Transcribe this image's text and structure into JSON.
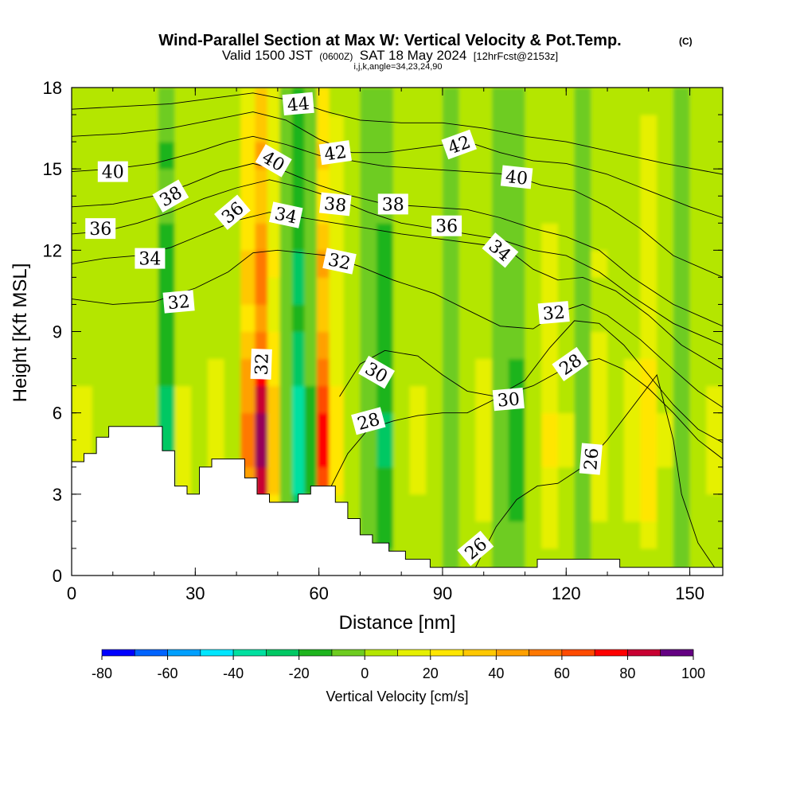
{
  "chart_data": {
    "type": "heatmap",
    "title": "Wind-Parallel Section at Max W: Vertical Velocity & Pot.Temp.",
    "title_mark": "(C)",
    "subtitle": {
      "valid_prefix": "Valid 1500 JST",
      "utc": "(0600Z)",
      "date": "SAT 18 May 2024",
      "forecast": "[12hrFcst@2153z]"
    },
    "indices": "i,j,k,angle=34,23,24,90",
    "xlabel": "Distance [nm]",
    "ylabel": "Height [Kft MSL]",
    "xlim": [
      0,
      158
    ],
    "ylim": [
      0,
      18
    ],
    "x_ticks": [
      0,
      30,
      60,
      90,
      120,
      150
    ],
    "y_ticks": [
      0,
      3,
      6,
      9,
      12,
      15,
      18
    ],
    "colorbar": {
      "label": "Vertical Velocity [cm/s]",
      "tick_values": [
        -80,
        -60,
        -40,
        -20,
        0,
        20,
        40,
        60,
        80,
        100
      ],
      "levels": [
        -80,
        -70,
        -60,
        -50,
        -40,
        -30,
        -20,
        -10,
        0,
        10,
        20,
        30,
        40,
        50,
        60,
        70,
        80,
        90,
        100
      ],
      "colors": [
        "#0000ff",
        "#0064ff",
        "#00a0ff",
        "#00e6ff",
        "#00e0a0",
        "#00c864",
        "#1eb41e",
        "#6ecc20",
        "#b4e600",
        "#e6f000",
        "#ffe600",
        "#ffc800",
        "#ffa000",
        "#ff7800",
        "#ff4b00",
        "#ff0000",
        "#c80032",
        "#96005a",
        "#640082"
      ]
    },
    "w_columns": [
      {
        "x": 3,
        "w": 12
      },
      {
        "x": 7,
        "w": 6
      },
      {
        "x": 11,
        "w": 9
      },
      {
        "x": 15,
        "w": 2
      },
      {
        "x": 19,
        "w": 8
      },
      {
        "x": 23,
        "w": -24
      },
      {
        "x": 27,
        "w": 12
      },
      {
        "x": 31,
        "w": 2
      },
      {
        "x": 35,
        "w": 16
      },
      {
        "x": 39,
        "w": 4
      },
      {
        "x": 43,
        "w": 55
      },
      {
        "x": 46,
        "w": 95
      },
      {
        "x": 49,
        "w": 35
      },
      {
        "x": 52,
        "w": -10
      },
      {
        "x": 55,
        "w": -38
      },
      {
        "x": 58,
        "w": -12
      },
      {
        "x": 61,
        "w": 72
      },
      {
        "x": 64,
        "w": 25
      },
      {
        "x": 68,
        "w": 4
      },
      {
        "x": 72,
        "w": -8
      },
      {
        "x": 76,
        "w": -22
      },
      {
        "x": 80,
        "w": 3
      },
      {
        "x": 84,
        "w": 12
      },
      {
        "x": 88,
        "w": 4
      },
      {
        "x": 92,
        "w": -6
      },
      {
        "x": 96,
        "w": 8
      },
      {
        "x": 100,
        "w": 14
      },
      {
        "x": 104,
        "w": -4
      },
      {
        "x": 108,
        "w": -14
      },
      {
        "x": 112,
        "w": 6
      },
      {
        "x": 116,
        "w": 22
      },
      {
        "x": 120,
        "w": 10
      },
      {
        "x": 124,
        "w": -2
      },
      {
        "x": 128,
        "w": 18
      },
      {
        "x": 132,
        "w": 4
      },
      {
        "x": 136,
        "w": 14
      },
      {
        "x": 140,
        "w": 28
      },
      {
        "x": 144,
        "w": 10
      },
      {
        "x": 148,
        "w": -10
      },
      {
        "x": 152,
        "w": 2
      },
      {
        "x": 156,
        "w": 12
      }
    ],
    "terrain": [
      [
        0,
        4.2
      ],
      [
        3,
        4.2
      ],
      [
        3,
        4.5
      ],
      [
        6,
        4.5
      ],
      [
        6,
        5.1
      ],
      [
        9,
        5.1
      ],
      [
        9,
        5.5
      ],
      [
        22,
        5.5
      ],
      [
        22,
        4.6
      ],
      [
        25,
        4.6
      ],
      [
        25,
        3.3
      ],
      [
        28,
        3.3
      ],
      [
        28,
        3.0
      ],
      [
        31,
        3.0
      ],
      [
        31,
        4.0
      ],
      [
        34,
        4.0
      ],
      [
        34,
        4.3
      ],
      [
        42,
        4.3
      ],
      [
        42,
        3.6
      ],
      [
        45,
        3.6
      ],
      [
        45,
        3.0
      ],
      [
        48,
        3.0
      ],
      [
        48,
        2.7
      ],
      [
        55,
        2.7
      ],
      [
        55,
        3.0
      ],
      [
        58,
        3.0
      ],
      [
        58,
        3.3
      ],
      [
        64,
        3.3
      ],
      [
        64,
        2.7
      ],
      [
        67,
        2.7
      ],
      [
        67,
        2.1
      ],
      [
        70,
        2.1
      ],
      [
        70,
        1.5
      ],
      [
        73,
        1.5
      ],
      [
        73,
        1.2
      ],
      [
        77,
        1.2
      ],
      [
        77,
        0.9
      ],
      [
        81,
        0.9
      ],
      [
        81,
        0.6
      ],
      [
        87,
        0.6
      ],
      [
        87,
        0.3
      ],
      [
        113,
        0.3
      ],
      [
        113,
        0.6
      ],
      [
        133,
        0.6
      ],
      [
        133,
        0.3
      ],
      [
        158,
        0.3
      ]
    ],
    "theta_contours": [
      {
        "value": 26,
        "points": [
          [
            98,
            0.3
          ],
          [
            103,
            1.8
          ],
          [
            108,
            2.8
          ],
          [
            113,
            3.3
          ],
          [
            118,
            3.4
          ],
          [
            124,
            4.0
          ],
          [
            130,
            5.0
          ],
          [
            136,
            6.2
          ],
          [
            142,
            7.4
          ],
          [
            146,
            5.0
          ],
          [
            148,
            3.0
          ],
          [
            152,
            1.2
          ],
          [
            156,
            0.3
          ]
        ]
      },
      {
        "value": 28,
        "points": [
          [
            63,
            3.3
          ],
          [
            67,
            4.5
          ],
          [
            72,
            5.4
          ],
          [
            78,
            5.7
          ],
          [
            84,
            5.9
          ],
          [
            90,
            6.0
          ],
          [
            96,
            6.0
          ],
          [
            104,
            6.6
          ],
          [
            112,
            7.0
          ],
          [
            118,
            7.5
          ],
          [
            122,
            7.8
          ],
          [
            128,
            8.0
          ],
          [
            134,
            7.6
          ],
          [
            140,
            6.9
          ],
          [
            146,
            6.0
          ],
          [
            152,
            5.0
          ],
          [
            158,
            4.3
          ]
        ]
      },
      {
        "value": 30,
        "points": [
          [
            65,
            6.6
          ],
          [
            70,
            7.8
          ],
          [
            76,
            8.3
          ],
          [
            84,
            8.1
          ],
          [
            90,
            7.4
          ],
          [
            96,
            6.8
          ],
          [
            103,
            6.6
          ],
          [
            110,
            7.2
          ],
          [
            116,
            8.4
          ],
          [
            122,
            9.4
          ],
          [
            128,
            9.3
          ],
          [
            134,
            8.5
          ],
          [
            140,
            7.4
          ],
          [
            146,
            6.3
          ],
          [
            152,
            5.4
          ],
          [
            158,
            4.9
          ]
        ]
      },
      {
        "value": 32,
        "points": [
          [
            0,
            10.2
          ],
          [
            10,
            10.0
          ],
          [
            20,
            10.1
          ],
          [
            30,
            10.6
          ],
          [
            38,
            11.2
          ],
          [
            44,
            11.9
          ],
          [
            50,
            12.0
          ],
          [
            56,
            11.9
          ],
          [
            62,
            11.8
          ],
          [
            70,
            11.4
          ],
          [
            78,
            10.9
          ],
          [
            88,
            10.4
          ],
          [
            96,
            9.8
          ],
          [
            104,
            9.2
          ],
          [
            112,
            9.1
          ],
          [
            118,
            9.7
          ],
          [
            124,
            10.0
          ],
          [
            130,
            9.6
          ],
          [
            138,
            8.7
          ],
          [
            146,
            7.6
          ],
          [
            152,
            6.8
          ],
          [
            158,
            6.2
          ]
        ]
      },
      {
        "value": 34,
        "points": [
          [
            0,
            11.5
          ],
          [
            8,
            11.7
          ],
          [
            16,
            11.8
          ],
          [
            24,
            12.1
          ],
          [
            32,
            12.6
          ],
          [
            40,
            13.1
          ],
          [
            48,
            13.4
          ],
          [
            56,
            13.2
          ],
          [
            64,
            13.0
          ],
          [
            72,
            12.8
          ],
          [
            80,
            12.6
          ],
          [
            90,
            12.4
          ],
          [
            100,
            12.2
          ],
          [
            106,
            12.0
          ],
          [
            112,
            11.3
          ],
          [
            118,
            10.9
          ],
          [
            124,
            11.0
          ],
          [
            132,
            10.5
          ],
          [
            140,
            9.6
          ],
          [
            148,
            8.5
          ],
          [
            158,
            7.6
          ]
        ]
      },
      {
        "value": 36,
        "points": [
          [
            0,
            12.6
          ],
          [
            8,
            12.7
          ],
          [
            16,
            13.0
          ],
          [
            24,
            13.4
          ],
          [
            32,
            13.9
          ],
          [
            40,
            14.3
          ],
          [
            48,
            14.6
          ],
          [
            56,
            14.3
          ],
          [
            64,
            13.9
          ],
          [
            72,
            13.4
          ],
          [
            80,
            13.0
          ],
          [
            88,
            12.8
          ],
          [
            96,
            12.6
          ],
          [
            104,
            12.4
          ],
          [
            112,
            12.0
          ],
          [
            120,
            11.8
          ],
          [
            128,
            11.2
          ],
          [
            136,
            10.3
          ],
          [
            146,
            9.3
          ],
          [
            158,
            8.5
          ]
        ]
      },
      {
        "value": 38,
        "points": [
          [
            0,
            13.6
          ],
          [
            10,
            13.7
          ],
          [
            20,
            14.0
          ],
          [
            28,
            14.4
          ],
          [
            36,
            14.9
          ],
          [
            44,
            15.2
          ],
          [
            52,
            14.9
          ],
          [
            60,
            14.4
          ],
          [
            68,
            14.0
          ],
          [
            76,
            13.7
          ],
          [
            86,
            13.6
          ],
          [
            96,
            13.5
          ],
          [
            104,
            13.2
          ],
          [
            112,
            12.8
          ],
          [
            120,
            12.5
          ],
          [
            128,
            12.0
          ],
          [
            136,
            11.0
          ],
          [
            146,
            10.0
          ],
          [
            158,
            9.2
          ]
        ]
      },
      {
        "value": 40,
        "points": [
          [
            0,
            14.9
          ],
          [
            10,
            15.0
          ],
          [
            20,
            15.2
          ],
          [
            30,
            15.6
          ],
          [
            38,
            16.0
          ],
          [
            44,
            16.2
          ],
          [
            52,
            15.9
          ],
          [
            60,
            15.5
          ],
          [
            68,
            15.3
          ],
          [
            76,
            15.1
          ],
          [
            86,
            15.0
          ],
          [
            96,
            14.9
          ],
          [
            106,
            14.8
          ],
          [
            114,
            14.4
          ],
          [
            122,
            14.2
          ],
          [
            130,
            13.6
          ],
          [
            138,
            12.8
          ],
          [
            146,
            11.8
          ],
          [
            158,
            11.0
          ]
        ]
      },
      {
        "value": 42,
        "points": [
          [
            0,
            16.2
          ],
          [
            12,
            16.3
          ],
          [
            24,
            16.5
          ],
          [
            34,
            16.8
          ],
          [
            44,
            17.1
          ],
          [
            52,
            16.8
          ],
          [
            60,
            16.1
          ],
          [
            68,
            15.6
          ],
          [
            76,
            15.6
          ],
          [
            86,
            15.8
          ],
          [
            96,
            16.0
          ],
          [
            104,
            15.6
          ],
          [
            112,
            15.3
          ],
          [
            120,
            15.2
          ],
          [
            130,
            14.8
          ],
          [
            140,
            14.2
          ],
          [
            150,
            13.6
          ],
          [
            158,
            13.2
          ]
        ]
      },
      {
        "value": 44,
        "points": [
          [
            0,
            17.2
          ],
          [
            12,
            17.3
          ],
          [
            24,
            17.4
          ],
          [
            34,
            17.6
          ],
          [
            44,
            17.8
          ],
          [
            54,
            17.5
          ],
          [
            62,
            17.1
          ],
          [
            70,
            16.8
          ],
          [
            80,
            16.7
          ],
          [
            90,
            16.7
          ],
          [
            100,
            16.5
          ],
          [
            110,
            16.2
          ],
          [
            120,
            16.0
          ],
          [
            132,
            15.6
          ],
          [
            144,
            15.2
          ],
          [
            158,
            14.8
          ]
        ]
      }
    ],
    "contour_labels": [
      {
        "text": "44",
        "x": 55,
        "y": 17.4,
        "angle": -5
      },
      {
        "text": "42",
        "x": 64,
        "y": 15.6,
        "angle": -8
      },
      {
        "text": "42",
        "x": 94,
        "y": 15.9,
        "angle": -20
      },
      {
        "text": "40",
        "x": 10,
        "y": 14.9,
        "angle": 0
      },
      {
        "text": "40",
        "x": 49,
        "y": 15.3,
        "angle": 30
      },
      {
        "text": "40",
        "x": 108,
        "y": 14.7,
        "angle": 6
      },
      {
        "text": "38",
        "x": 24,
        "y": 14.0,
        "angle": -30
      },
      {
        "text": "38",
        "x": 64,
        "y": 13.7,
        "angle": 6
      },
      {
        "text": "38",
        "x": 78,
        "y": 13.7,
        "angle": 0
      },
      {
        "text": "36",
        "x": 7,
        "y": 12.8,
        "angle": 0
      },
      {
        "text": "36",
        "x": 39,
        "y": 13.4,
        "angle": -40
      },
      {
        "text": "36",
        "x": 91,
        "y": 12.9,
        "angle": 0
      },
      {
        "text": "34",
        "x": 19,
        "y": 11.7,
        "angle": 0
      },
      {
        "text": "34",
        "x": 52,
        "y": 13.3,
        "angle": 12
      },
      {
        "text": "34",
        "x": 104,
        "y": 12.0,
        "angle": 40
      },
      {
        "text": "32",
        "x": 26,
        "y": 10.1,
        "angle": -5
      },
      {
        "text": "32",
        "x": 65,
        "y": 11.6,
        "angle": 12
      },
      {
        "text": "32",
        "x": 117,
        "y": 9.7,
        "angle": -5
      },
      {
        "text": "32",
        "x": 46,
        "y": 7.8,
        "angle": -88
      },
      {
        "text": "30",
        "x": 74,
        "y": 7.5,
        "angle": 30
      },
      {
        "text": "30",
        "x": 106,
        "y": 6.5,
        "angle": -5
      },
      {
        "text": "28",
        "x": 72,
        "y": 5.7,
        "angle": -15
      },
      {
        "text": "28",
        "x": 121,
        "y": 7.8,
        "angle": -35
      },
      {
        "text": "26",
        "x": 126,
        "y": 4.3,
        "angle": -85
      },
      {
        "text": "26",
        "x": 98,
        "y": 1.0,
        "angle": -40
      }
    ]
  }
}
